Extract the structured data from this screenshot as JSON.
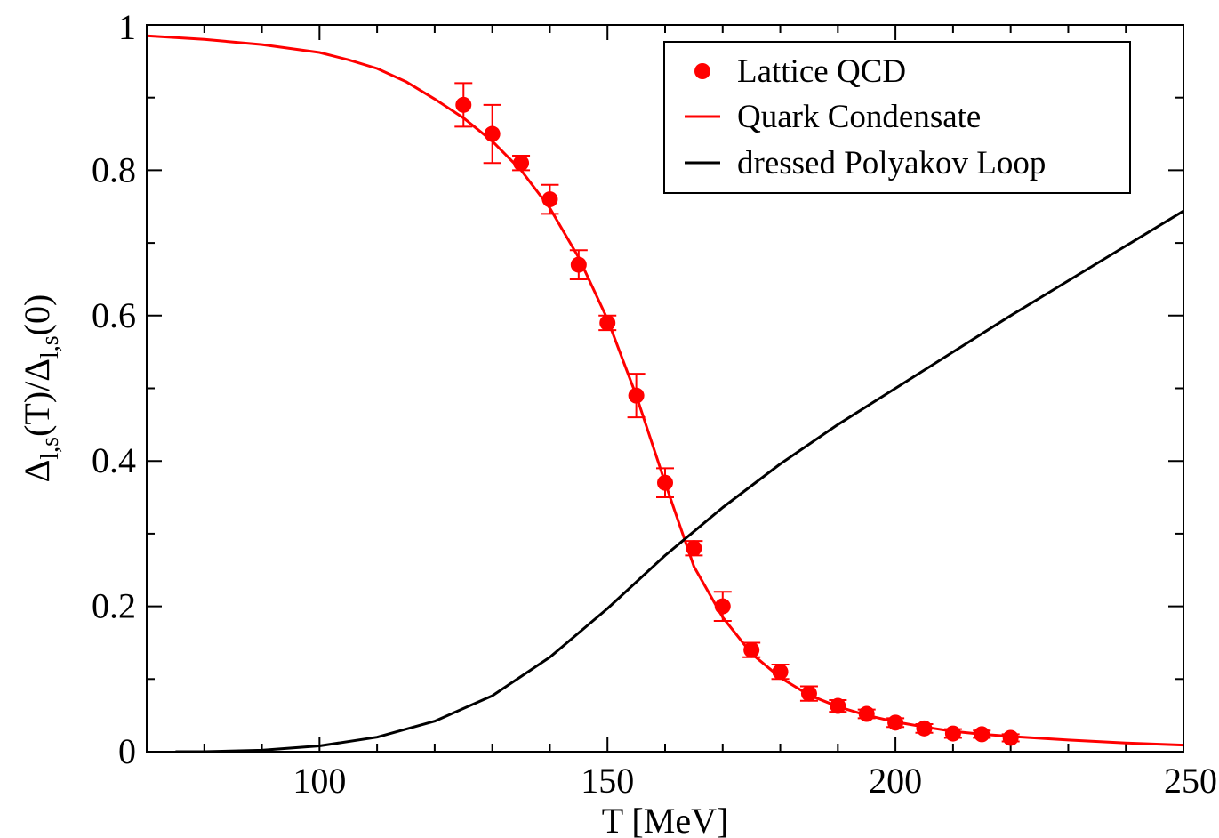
{
  "chart_data": {
    "type": "line",
    "xlabel": "T [MeV]",
    "ylabel": {
      "base": "Δ",
      "sub1": "l,s",
      "mid": "(T)/Δ",
      "sub2": "l,s",
      "end": "(0)"
    },
    "xlim": [
      70,
      250
    ],
    "ylim": [
      0,
      1
    ],
    "x_ticks": [
      {
        "value": 100,
        "label": "100"
      },
      {
        "value": 150,
        "label": "150"
      },
      {
        "value": 200,
        "label": "200"
      },
      {
        "value": 250,
        "label": "250"
      }
    ],
    "y_ticks": [
      {
        "value": 0,
        "label": "0"
      },
      {
        "value": 0.2,
        "label": "0.2"
      },
      {
        "value": 0.4,
        "label": "0.4"
      },
      {
        "value": 0.6,
        "label": "0.6"
      },
      {
        "value": 0.8,
        "label": "0.8"
      },
      {
        "value": 1,
        "label": "1"
      }
    ],
    "x_minor_step": 10,
    "y_minor_step": 0.1,
    "grid": false,
    "legend_position": "top-right",
    "series": [
      {
        "name": "Lattice QCD",
        "kind": "scatter-errorbar",
        "color": "#ff0000",
        "x": [
          125,
          130,
          135,
          140,
          145,
          150,
          155,
          160,
          165,
          170,
          175,
          180,
          185,
          190,
          195,
          200,
          205,
          210,
          215,
          220
        ],
        "y": [
          0.89,
          0.85,
          0.81,
          0.76,
          0.67,
          0.59,
          0.49,
          0.37,
          0.28,
          0.2,
          0.14,
          0.11,
          0.08,
          0.063,
          0.052,
          0.04,
          0.032,
          0.025,
          0.024,
          0.019
        ],
        "yerr": [
          0.03,
          0.04,
          0.01,
          0.02,
          0.02,
          0.01,
          0.03,
          0.02,
          0.01,
          0.02,
          0.01,
          0.01,
          0.01,
          0.008,
          0.006,
          0.006,
          0.006,
          0.006,
          0.005,
          0.005
        ]
      },
      {
        "name": "Quark Condensate",
        "kind": "line",
        "color": "#ff0000",
        "x": [
          70,
          80,
          90,
          100,
          105,
          110,
          115,
          120,
          125,
          130,
          135,
          140,
          145,
          150,
          155,
          160,
          165,
          170,
          175,
          180,
          185,
          190,
          195,
          200,
          205,
          210,
          215,
          220,
          230,
          240,
          250
        ],
        "y": [
          0.985,
          0.98,
          0.973,
          0.962,
          0.952,
          0.94,
          0.922,
          0.898,
          0.872,
          0.84,
          0.8,
          0.748,
          0.68,
          0.595,
          0.49,
          0.37,
          0.255,
          0.185,
          0.135,
          0.102,
          0.078,
          0.062,
          0.05,
          0.041,
          0.034,
          0.028,
          0.024,
          0.021,
          0.016,
          0.012,
          0.009
        ]
      },
      {
        "name": "dressed Polyakov Loop",
        "kind": "line",
        "color": "#000000",
        "x": [
          75,
          80,
          90,
          100,
          110,
          120,
          130,
          140,
          150,
          160,
          170,
          180,
          190,
          200,
          210,
          220,
          230,
          240,
          250
        ],
        "y": [
          0,
          0,
          0.002,
          0.008,
          0.02,
          0.042,
          0.077,
          0.13,
          0.197,
          0.27,
          0.336,
          0.396,
          0.45,
          0.5,
          0.55,
          0.6,
          0.648,
          0.696,
          0.744
        ]
      }
    ]
  }
}
